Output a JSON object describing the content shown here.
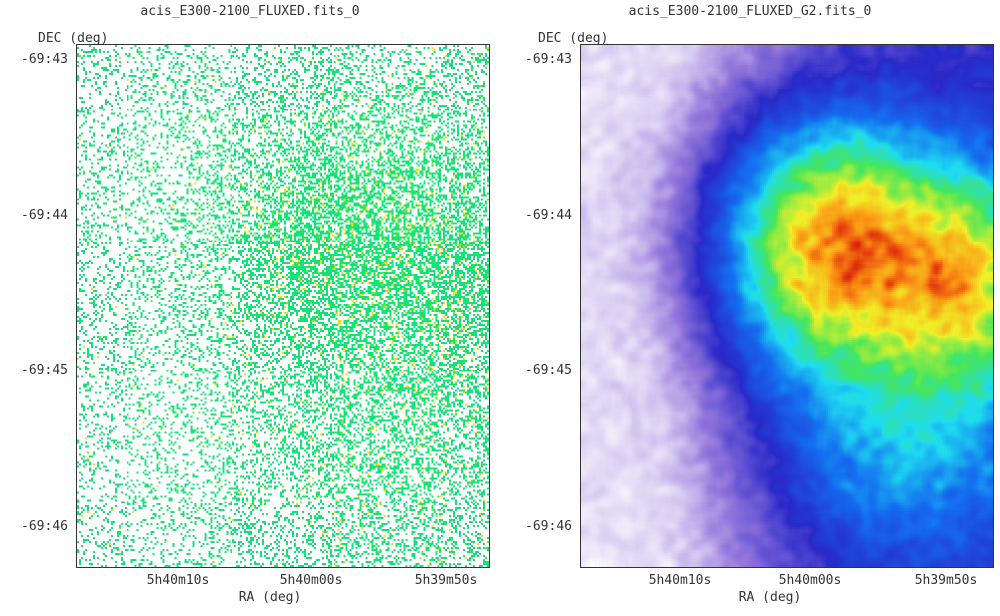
{
  "chart_data": [
    {
      "type": "heatmap",
      "title": "acis_E300-2100_FLUXED.fits_0",
      "xlabel": "RA (deg)",
      "ylabel": "DEC (deg)",
      "x_ticks": [
        "5h40m10s",
        "5h40m00s",
        "5h39m50s"
      ],
      "y_ticks": [
        "-69:43",
        "-69:44",
        "-69:45",
        "-69:46"
      ],
      "colormap": "sparse counts: white background, green pixels, occasional yellow",
      "grid": false
    },
    {
      "type": "heatmap",
      "title": "acis_E300-2100_FLUXED_G2.fits_0",
      "xlabel": "RA (deg)",
      "ylabel": "DEC (deg)",
      "x_ticks": [
        "5h40m10s",
        "5h40m00s",
        "5h39m50s"
      ],
      "y_ticks": [
        "-69:43",
        "-69:44",
        "-69:45",
        "-69:46"
      ],
      "colormap": "smoothed: white-purple-blue-cyan-green-yellow-orange-red",
      "grid": false
    }
  ]
}
